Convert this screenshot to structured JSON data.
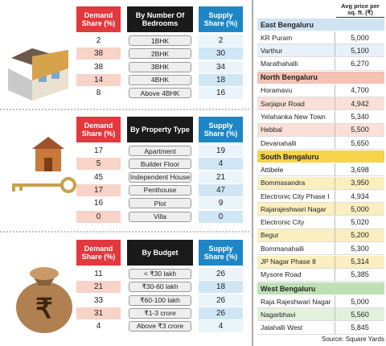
{
  "left_tables": [
    {
      "headers": [
        "Demand Share (%)",
        "By Number Of Bedrooms",
        "Supply Share (%)"
      ],
      "rows": [
        [
          2,
          "1BHK",
          2
        ],
        [
          38,
          "2BHK",
          30
        ],
        [
          38,
          "3BHK",
          34
        ],
        [
          14,
          "4BHK",
          18
        ],
        [
          8,
          "Above 4BHK",
          16
        ]
      ]
    },
    {
      "headers": [
        "Demand Share (%)",
        "By Property Type",
        "Supply Share (%)"
      ],
      "rows": [
        [
          17,
          "Apartment",
          19
        ],
        [
          5,
          "Builder Floor",
          4
        ],
        [
          45,
          "Independent House",
          21
        ],
        [
          17,
          "Penthouse",
          47
        ],
        [
          16,
          "Plot",
          9
        ],
        [
          0,
          "Villa",
          0
        ]
      ]
    },
    {
      "headers": [
        "Demand Share (%)",
        "By Budget",
        "Supply Share (%)"
      ],
      "rows": [
        [
          11,
          "< ₹30 lakh",
          26
        ],
        [
          21,
          "₹30-60 lakh",
          18
        ],
        [
          33,
          "₹60-100 lakh",
          26
        ],
        [
          31,
          "₹1-3 crore",
          26
        ],
        [
          4,
          "Above ₹3 crore",
          4
        ]
      ]
    }
  ],
  "prices": {
    "header": "Avg price per sq. ft. (₹)",
    "regions": [
      {
        "name": "East Bengaluru",
        "rows": [
          [
            "KR Puram",
            "5,000"
          ],
          [
            "Varthur",
            "5,100"
          ],
          [
            "Marathahalli",
            "6,270"
          ]
        ]
      },
      {
        "name": "North Bengaluru",
        "rows": [
          [
            "Horamavu",
            "4,700"
          ],
          [
            "Sarjapur Road",
            "4,942"
          ],
          [
            "Yelahanka New Town",
            "5,340"
          ],
          [
            "Hebbal",
            "5,500"
          ],
          [
            "Devanahalli",
            "5,650"
          ]
        ]
      },
      {
        "name": "South Bengaluru",
        "rows": [
          [
            "Attibele",
            "3,698"
          ],
          [
            "Bommasandra",
            "3,950"
          ],
          [
            "Electronic City Phase I",
            "4,934"
          ],
          [
            "Rajarajeshwari Nagar",
            "5,000"
          ],
          [
            "Electronic City",
            "5,020"
          ],
          [
            "Begur",
            "5,200"
          ],
          [
            "Bommanahalli",
            "5,300"
          ],
          [
            "JP Nagar Phase 8",
            "5,314"
          ],
          [
            "Mysore Road",
            "5,385"
          ]
        ]
      },
      {
        "name": "West Bengaluru",
        "rows": [
          [
            "Raja Rajeshwari Nagar",
            "5,000"
          ],
          [
            "Nagarbhavi",
            "5,560"
          ],
          [
            "Jalahalli West",
            "5,845"
          ]
        ]
      }
    ]
  },
  "source": "Source: Square Yards"
}
